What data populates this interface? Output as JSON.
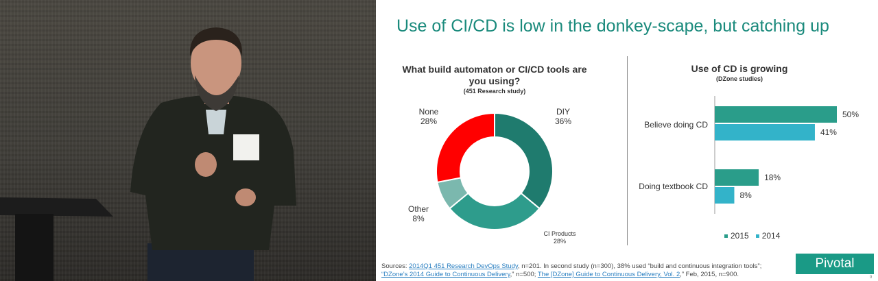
{
  "slide": {
    "title": "Use of CI/CD is low in the donkey-scape, but catching up",
    "page_number": "9",
    "logo_text": "Pivotal",
    "sources": {
      "prefix": "Sources: ",
      "link1": "2014Q1 451 Research DevOps Study",
      "text1": ", n=201. In second study (n=300), 38% used “build and continuous integration tools”;",
      "link2": "“DZone’s 2014 Guide to Continuous Delivery",
      "text2": ",” n=500; ",
      "link3": "The [DZone] Guide to Continuous Delivery, Vol. 2",
      "text3": ",” Feb, 2015, n=900."
    }
  },
  "colors": {
    "title": "#1a8a7c",
    "diy": "#1f7b6e",
    "ci_products": "#2e9c8c",
    "other": "#7bb8ae",
    "none": "#ff0000",
    "bar_2015": "#2a9d8a",
    "bar_2014": "#33b3c9"
  },
  "chart_data": [
    {
      "type": "pie",
      "title": "What build automaton or CI/CD tools are you using?",
      "subtitle": "(451 Research study)",
      "slices": [
        {
          "label": "DIY",
          "value": 36,
          "display": "36%"
        },
        {
          "label": "CI Products",
          "value": 28,
          "display": "28%"
        },
        {
          "label": "Other",
          "value": 8,
          "display": "8%"
        },
        {
          "label": "None",
          "value": 28,
          "display": "28%"
        }
      ]
    },
    {
      "type": "bar",
      "orientation": "horizontal",
      "title": "Use of CD is growing",
      "subtitle": "(DZone studies)",
      "categories": [
        "Believe doing CD",
        "Doing textbook CD"
      ],
      "series": [
        {
          "name": "2015",
          "values": [
            50,
            18
          ],
          "labels": [
            "50%",
            "18%"
          ]
        },
        {
          "name": "2014",
          "values": [
            41,
            8
          ],
          "labels": [
            "41%",
            "8%"
          ]
        }
      ],
      "xlim": [
        0,
        50
      ],
      "legend": "bottom"
    }
  ]
}
